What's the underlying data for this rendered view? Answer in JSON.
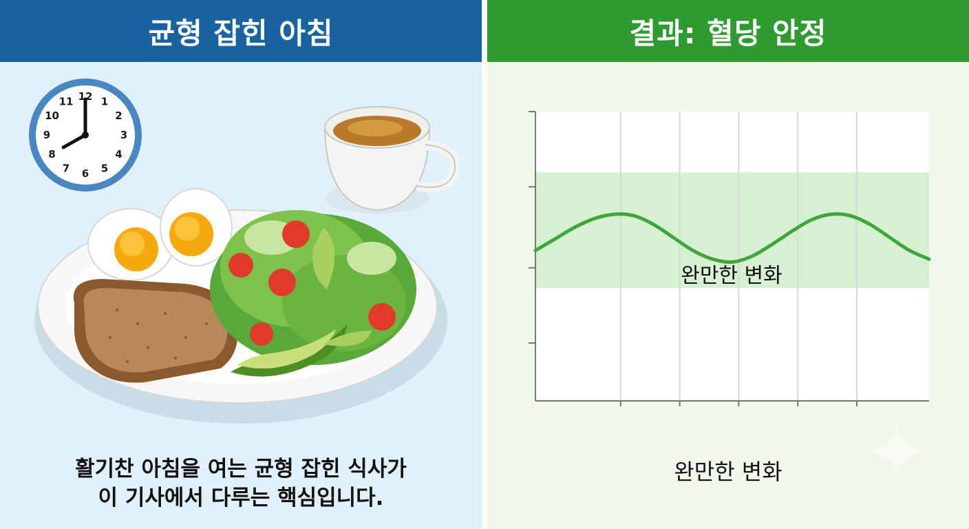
{
  "left_panel": {
    "title": "균형 잡힌 아침",
    "caption_line1": "활기찬 아침을 여는 균형 잡힌 식사가",
    "caption_line2": "이 기사에서 다루는 핵심입니다.",
    "clock_numbers": [
      "12",
      "1",
      "2",
      "3",
      "4",
      "5",
      "6",
      "7",
      "8",
      "9",
      "10",
      "11"
    ],
    "colors": {
      "header": "#1a63a0",
      "background": "#e1f1fb"
    }
  },
  "right_panel": {
    "title": "결과: 혈당 안정",
    "caption": "완만한 변화",
    "colors": {
      "header": "#2f9a2f",
      "background": "#eff8ea",
      "band": "#d8f0d2",
      "line": "#3ea63e"
    }
  },
  "chart_data": {
    "type": "line",
    "title": "",
    "xlabel": "",
    "ylabel": "",
    "band_label": "완만한 변화",
    "x": [
      0,
      1,
      2,
      3,
      4,
      5,
      6,
      7,
      8,
      9,
      10,
      11,
      12,
      13,
      14,
      15,
      16,
      17,
      18,
      19,
      20
    ],
    "series": [
      {
        "values": [
          0.52,
          0.56,
          0.6,
          0.63,
          0.645,
          0.64,
          0.61,
          0.565,
          0.52,
          0.49,
          0.48,
          0.5,
          0.54,
          0.585,
          0.625,
          0.645,
          0.64,
          0.61,
          0.565,
          0.52,
          0.49
        ]
      }
    ],
    "band": [
      0.39,
      0.79
    ],
    "ylim": [
      0,
      1
    ],
    "grid": true
  }
}
